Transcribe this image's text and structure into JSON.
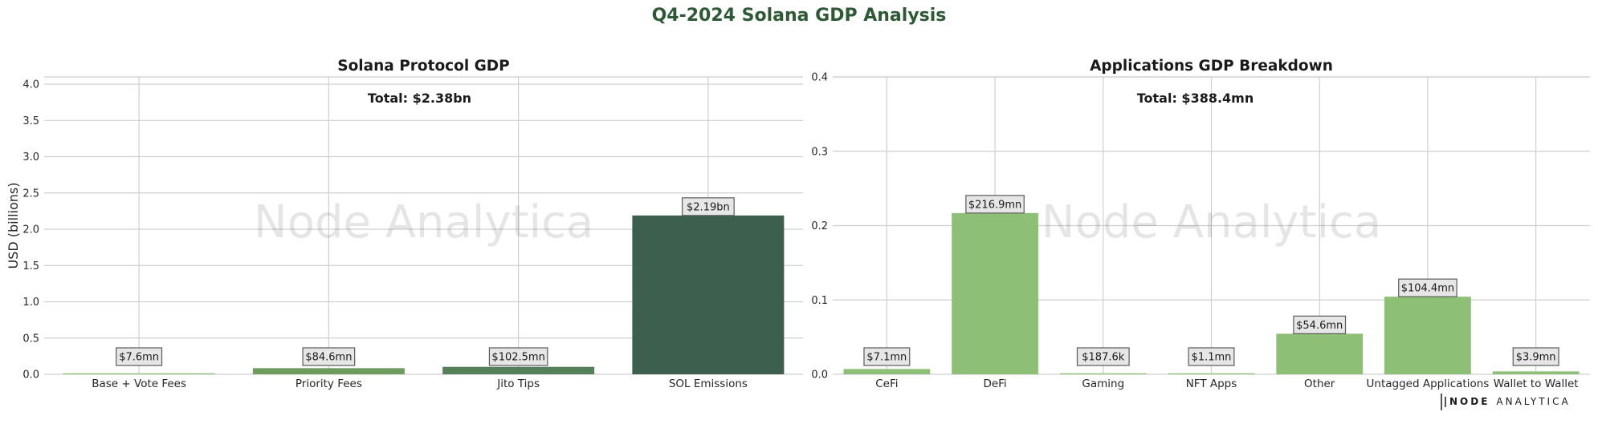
{
  "suptitle": "Q4-2024 Solana GDP Analysis",
  "watermark": "Node Analytica",
  "logo": {
    "brand": "NODE",
    "rest": "ANALYTICA"
  },
  "chart_data": [
    {
      "type": "bar",
      "title": "Solana Protocol GDP",
      "total_label": "Total: $2.38bn",
      "ylabel": "USD (billions)",
      "xlabel": "",
      "ylim": [
        0,
        4.1
      ],
      "yticks": [
        0,
        0.5,
        1,
        1.5,
        2,
        2.5,
        3,
        3.5,
        4
      ],
      "ytick_labels": [
        "0.0",
        "0.5",
        "1.0",
        "1.5",
        "2.0",
        "2.5",
        "3.0",
        "3.5",
        "4.0"
      ],
      "categories": [
        "Base + Vote Fees",
        "Priority Fees",
        "Jito Tips",
        "SOL Emissions"
      ],
      "values": [
        0.0076,
        0.0846,
        0.1025,
        2.19
      ],
      "value_labels": [
        "$7.6mn",
        "$84.6mn",
        "$102.5mn",
        "$2.19bn"
      ],
      "colors": [
        "#8ebf76",
        "#6e9c5f",
        "#56805a",
        "#3c604d"
      ],
      "grid": true
    },
    {
      "type": "bar",
      "title": "Applications GDP Breakdown",
      "total_label": "Total: $388.4mn",
      "ylabel": "",
      "xlabel": "",
      "ylim": [
        0,
        0.4
      ],
      "yticks": [
        0,
        0.1,
        0.2,
        0.3,
        0.4
      ],
      "ytick_labels": [
        "0.0",
        "0.1",
        "0.2",
        "0.3",
        "0.4"
      ],
      "categories": [
        "CeFi",
        "DeFi",
        "Gaming",
        "NFT Apps",
        "Other",
        "Untagged Applications",
        "Wallet to Wallet"
      ],
      "values": [
        0.0071,
        0.2169,
        0.0001876,
        0.0011,
        0.0546,
        0.1044,
        0.0039
      ],
      "value_labels": [
        "$7.1mn",
        "$216.9mn",
        "$187.6k",
        "$1.1mn",
        "$54.6mn",
        "$104.4mn",
        "$3.9mn"
      ],
      "colors": [
        "#8ebf76",
        "#8ebf76",
        "#8ebf76",
        "#8ebf76",
        "#8ebf76",
        "#8ebf76",
        "#8ebf76"
      ],
      "grid": true
    }
  ]
}
